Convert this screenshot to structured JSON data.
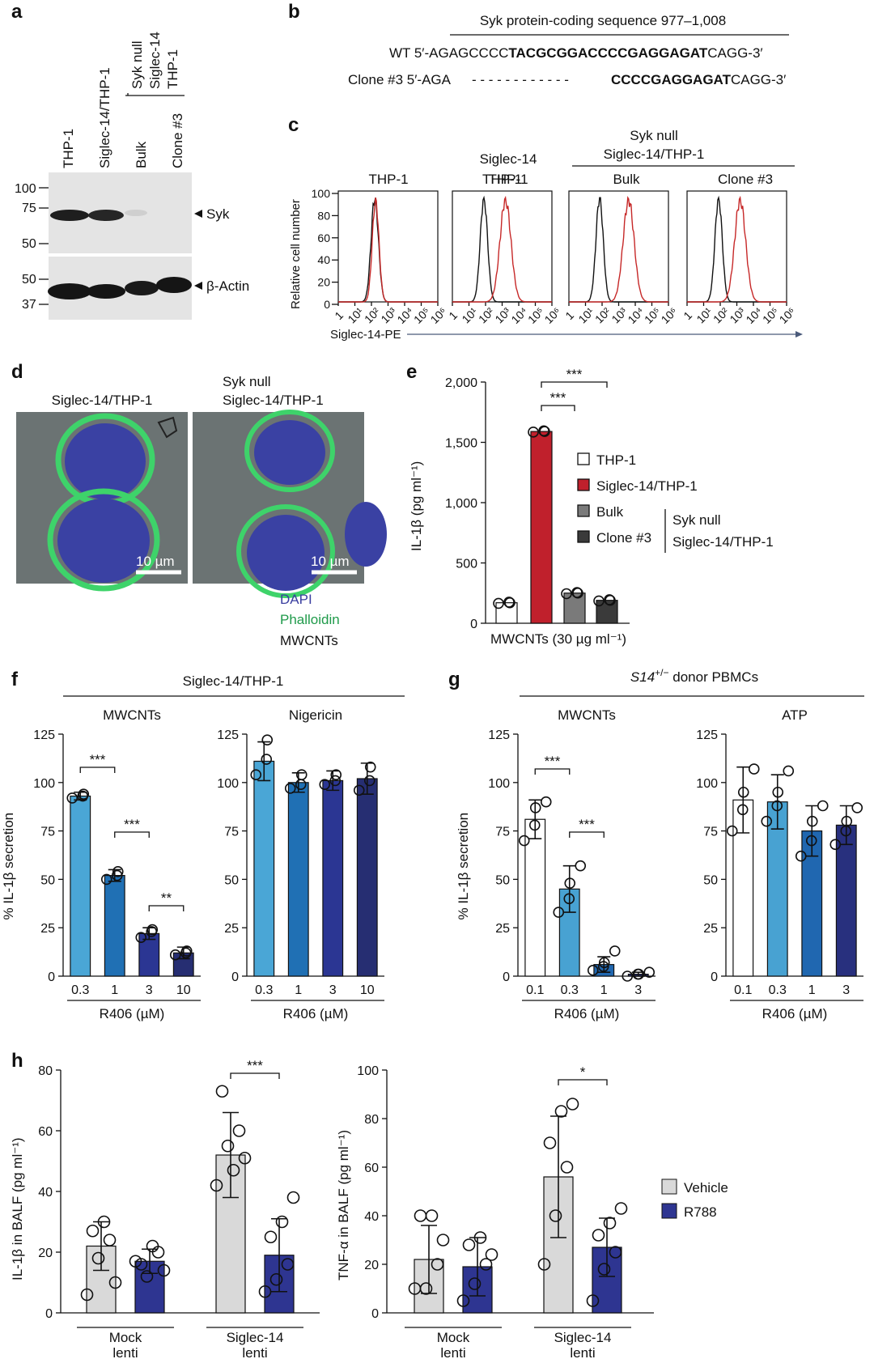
{
  "panel_a": {
    "label": "a",
    "lanes": [
      "THP-1",
      "Siglec-14/THP-1",
      "Bulk",
      "Clone #3"
    ],
    "group_label": [
      "Syk null",
      "Siglec-14",
      "THP-1"
    ],
    "mw_top": [
      "100",
      "75",
      "50"
    ],
    "mw_bottom": [
      "50",
      "37"
    ],
    "band_top": "Syk",
    "band_bottom": "β-Actin"
  },
  "panel_b": {
    "label": "b",
    "title": "Syk protein-coding sequence 977–1,008",
    "wt_prefix": "WT 5′-AGAGCCCC",
    "wt_bold": "TACGCGGACCCCGAGGAGAT",
    "wt_suffix": "CAGG-3′",
    "clone_prefix": "Clone #3 5′-AGA",
    "clone_dashes": "- - - - - - - - - - - -",
    "clone_bold": "CCCCGAGGAGAT",
    "clone_suffix": "CAGG-3′"
  },
  "panel_c": {
    "label": "c",
    "group_label": [
      "Syk null",
      "Siglec-14/THP-1"
    ],
    "header_s14": [
      "Siglec-14",
      "THP-1"
    ],
    "plot_titles": [
      "THP-1",
      "THP-1",
      "Bulk",
      "Clone #3"
    ],
    "ylabel": "Relative cell number",
    "xlabel": "Siglec-14-PE",
    "y_ticks": [
      "100",
      "80",
      "60",
      "40",
      "20",
      "0"
    ],
    "x_ticks": [
      "1",
      "10¹",
      "10²",
      "10³",
      "10⁴",
      "10⁵",
      "10⁶"
    ],
    "colors": {
      "control": "#111111",
      "stained": "#c62828"
    }
  },
  "panel_d": {
    "label": "d",
    "titles": [
      "Siglec-14/THP-1",
      "Syk null",
      "Siglec-14/THP-1"
    ],
    "scale_bar": "10 µm",
    "legend": [
      "DAPI",
      "Phalloidin",
      "MWCNTs"
    ],
    "legend_colors": [
      "#3b3fa0",
      "#1f9a4a",
      "#111111"
    ]
  },
  "panel_e": {
    "label": "e",
    "chart_data": {
      "type": "bar",
      "ylabel": "IL-1β (pg ml⁻¹)",
      "xlabel": "MWCNTs (30 µg ml⁻¹)",
      "y_ticks": [
        "0",
        "500",
        "1,000",
        "1,500",
        "2,000"
      ],
      "ylim": [
        0,
        2000
      ],
      "categories": [
        "THP-1",
        "Siglec-14/THP-1",
        "Bulk",
        "Clone #3"
      ],
      "values": [
        170,
        1590,
        250,
        190
      ],
      "colors": [
        "#ffffff",
        "#c0202c",
        "#7a7a7a",
        "#3a3a3a"
      ],
      "points": [
        [
          165,
          175,
          170
        ],
        [
          1585,
          1595,
          1590
        ],
        [
          245,
          255,
          250
        ],
        [
          185,
          195,
          190
        ]
      ],
      "sig": [
        "***",
        "***"
      ],
      "legend_group": [
        "Syk null",
        "Siglec-14/THP-1"
      ]
    }
  },
  "panel_f": {
    "label": "f",
    "title": "Siglec-14/THP-1",
    "ylabel": "% IL-1β secretion",
    "xlabel": "R406 (µM)",
    "y_ticks": [
      "0",
      "25",
      "50",
      "75",
      "100",
      "125"
    ],
    "chart_data": [
      {
        "type": "bar",
        "title": "MWCNTs",
        "categories": [
          "0.3",
          "1",
          "3",
          "10"
        ],
        "values": [
          93,
          52,
          22,
          12
        ],
        "errors": [
          2,
          3,
          3,
          3
        ],
        "points": [
          [
            92,
            93,
            94
          ],
          [
            50,
            52,
            54
          ],
          [
            20,
            23,
            24
          ],
          [
            11,
            12,
            13
          ]
        ],
        "sig": [
          "***",
          "***",
          "**"
        ],
        "ylim": [
          0,
          125
        ]
      },
      {
        "type": "bar",
        "title": "Nigericin",
        "categories": [
          "0.3",
          "1",
          "3",
          "10"
        ],
        "values": [
          111,
          100,
          101,
          102
        ],
        "errors": [
          10,
          5,
          5,
          8
        ],
        "points": [
          [
            104,
            112,
            122
          ],
          [
            97,
            99,
            104
          ],
          [
            99,
            101,
            104
          ],
          [
            96,
            101,
            108
          ]
        ],
        "sig": [],
        "ylim": [
          0,
          125
        ]
      }
    ]
  },
  "panel_g": {
    "label": "g",
    "title_italic": "S14",
    "title_sup": "+/−",
    "title_rest": " donor PBMCs",
    "ylabel": "% IL-1β secretion",
    "xlabel": "R406 (µM)",
    "y_ticks": [
      "0",
      "25",
      "50",
      "75",
      "100",
      "125"
    ],
    "chart_data": [
      {
        "type": "bar",
        "title": "MWCNTs",
        "categories": [
          "0.1",
          "0.3",
          "1",
          "3"
        ],
        "values": [
          81,
          45,
          6,
          1
        ],
        "errors": [
          10,
          12,
          4,
          1
        ],
        "points": [
          [
            70,
            78,
            87,
            90
          ],
          [
            33,
            40,
            48,
            57
          ],
          [
            3,
            5,
            7,
            13
          ],
          [
            0,
            1,
            1,
            2
          ]
        ],
        "sig": [
          "***",
          "***"
        ],
        "ylim": [
          0,
          125
        ]
      },
      {
        "type": "bar",
        "title": "ATP",
        "categories": [
          "0.1",
          "0.3",
          "1",
          "3"
        ],
        "values": [
          91,
          90,
          75,
          78
        ],
        "errors": [
          17,
          14,
          13,
          10
        ],
        "points": [
          [
            75,
            86,
            95,
            107
          ],
          [
            80,
            88,
            95,
            106
          ],
          [
            62,
            70,
            80,
            88
          ],
          [
            68,
            75,
            80,
            87
          ]
        ],
        "sig": [],
        "ylim": [
          0,
          125
        ]
      }
    ],
    "colors": [
      "#ffffff",
      "#48a2d2",
      "#2067b0",
      "#28307e"
    ]
  },
  "panel_h": {
    "label": "h",
    "legend": [
      "Vehicle",
      "R788"
    ],
    "legend_colors": [
      "#d9d9d9",
      "#2e3591"
    ],
    "groups": [
      "Mock",
      "lenti",
      "Siglec-14",
      "lenti"
    ],
    "chart_data": [
      {
        "type": "bar",
        "ylabel": "IL-1β in BALF (pg ml⁻¹)",
        "y_ticks": [
          "0",
          "20",
          "40",
          "60",
          "80"
        ],
        "ylim": [
          0,
          80
        ],
        "categories": [
          "Mock lenti",
          "Siglec-14 lenti"
        ],
        "series": [
          {
            "name": "Vehicle",
            "values": [
              22,
              52
            ]
          },
          {
            "name": "R788",
            "values": [
              17,
              19
            ]
          }
        ],
        "points": [
          [
            [
              6,
              18,
              24,
              27,
              30,
              10
            ],
            [
              17,
              12,
              20,
              16,
              22,
              14
            ]
          ],
          [
            [
              42,
              55,
              60,
              73,
              47,
              51
            ]
          ],
          [
            [
              7,
              11,
              16,
              25,
              30,
              38
            ]
          ]
        ],
        "errors": [
          [
            8,
            4
          ],
          [
            14,
            12
          ]
        ],
        "sig": [
          "***"
        ]
      },
      {
        "type": "bar",
        "ylabel": "TNF-α in BALF (pg ml⁻¹)",
        "y_ticks": [
          "0",
          "20",
          "40",
          "60",
          "80",
          "100"
        ],
        "ylim": [
          0,
          100
        ],
        "categories": [
          "Mock lenti",
          "Siglec-14 lenti"
        ],
        "series": [
          {
            "name": "Vehicle",
            "values": [
              22,
              56
            ]
          },
          {
            "name": "R788",
            "values": [
              19,
              27
            ]
          }
        ],
        "points": [
          [
            [
              10,
              10,
              20,
              40,
              40,
              30
            ],
            [
              5,
              12,
              20,
              28,
              31,
              24
            ]
          ],
          [
            [
              20,
              40,
              60,
              70,
              83,
              86
            ]
          ],
          [
            [
              5,
              18,
              25,
              32,
              37,
              43
            ]
          ]
        ],
        "errors": [
          [
            14,
            12
          ],
          [
            25,
            12
          ]
        ],
        "sig": [
          "*"
        ]
      }
    ]
  }
}
